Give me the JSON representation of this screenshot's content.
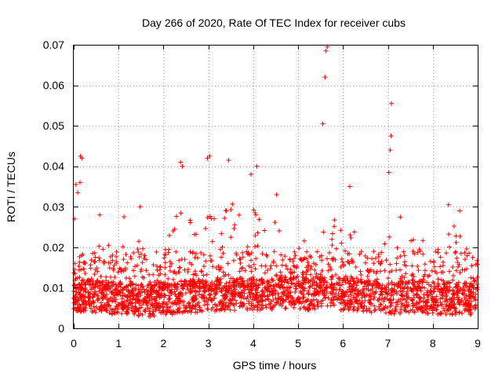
{
  "chart_data": {
    "type": "scatter",
    "title": "Day 266 of 2020, Rate Of TEC Index for receiver cubs",
    "xlabel": "GPS time / hours",
    "ylabel": "ROTI / TECUs",
    "xlim": [
      0,
      9
    ],
    "ylim": [
      0,
      0.07
    ],
    "x_ticks": [
      0,
      1,
      2,
      3,
      4,
      5,
      6,
      7,
      8,
      9
    ],
    "x_tick_labels": [
      "0",
      "1",
      "2",
      "3",
      "4",
      "5",
      "6",
      "7",
      "8",
      "9"
    ],
    "y_ticks": [
      0,
      0.01,
      0.02,
      0.03,
      0.04,
      0.05,
      0.06,
      0.07
    ],
    "y_tick_labels": [
      "0",
      "0.01",
      "0.02",
      "0.03",
      "0.04",
      "0.05",
      "0.06",
      "0.07"
    ],
    "grid": true,
    "marker": "+",
    "color": "#ff0000",
    "series": [
      {
        "name": "ROTI",
        "notable_points": [
          {
            "x": 0.02,
            "y": 0.027
          },
          {
            "x": 0.05,
            "y": 0.0355
          },
          {
            "x": 0.09,
            "y": 0.0335
          },
          {
            "x": 0.14,
            "y": 0.036
          },
          {
            "x": 0.15,
            "y": 0.0425
          },
          {
            "x": 0.18,
            "y": 0.042
          },
          {
            "x": 0.58,
            "y": 0.028
          },
          {
            "x": 1.12,
            "y": 0.0275
          },
          {
            "x": 1.48,
            "y": 0.03
          },
          {
            "x": 2.38,
            "y": 0.041
          },
          {
            "x": 2.42,
            "y": 0.04
          },
          {
            "x": 2.98,
            "y": 0.042
          },
          {
            "x": 3.03,
            "y": 0.0425
          },
          {
            "x": 3.45,
            "y": 0.0415
          },
          {
            "x": 3.95,
            "y": 0.038
          },
          {
            "x": 4.08,
            "y": 0.04
          },
          {
            "x": 4.52,
            "y": 0.033
          },
          {
            "x": 5.55,
            "y": 0.0505
          },
          {
            "x": 5.6,
            "y": 0.062
          },
          {
            "x": 5.62,
            "y": 0.0685
          },
          {
            "x": 5.65,
            "y": 0.0695
          },
          {
            "x": 6.15,
            "y": 0.035
          },
          {
            "x": 7.02,
            "y": 0.0385
          },
          {
            "x": 7.05,
            "y": 0.044
          },
          {
            "x": 7.07,
            "y": 0.0475
          },
          {
            "x": 7.08,
            "y": 0.0555
          },
          {
            "x": 8.35,
            "y": 0.0305
          },
          {
            "x": 8.6,
            "y": 0.029
          }
        ],
        "envelope": {
          "x": [
            0,
            0.25,
            0.5,
            0.75,
            1.0,
            1.25,
            1.5,
            1.75,
            2.0,
            2.25,
            2.5,
            2.75,
            3.0,
            3.25,
            3.5,
            3.75,
            4.0,
            4.25,
            4.5,
            4.75,
            5.0,
            5.25,
            5.5,
            5.75,
            6.0,
            6.25,
            6.5,
            6.75,
            7.0,
            7.25,
            7.5,
            7.75,
            8.0,
            8.25,
            8.5,
            8.75,
            9.0
          ],
          "baseline": [
            0.007,
            0.0075,
            0.0075,
            0.007,
            0.007,
            0.007,
            0.0065,
            0.0065,
            0.007,
            0.007,
            0.0075,
            0.0075,
            0.0075,
            0.008,
            0.008,
            0.008,
            0.008,
            0.008,
            0.008,
            0.0085,
            0.0085,
            0.008,
            0.0085,
            0.0085,
            0.008,
            0.008,
            0.0075,
            0.0075,
            0.007,
            0.007,
            0.0075,
            0.0075,
            0.007,
            0.007,
            0.007,
            0.007,
            0.0065
          ],
          "upper": [
            0.017,
            0.019,
            0.02,
            0.021,
            0.02,
            0.024,
            0.022,
            0.018,
            0.021,
            0.03,
            0.028,
            0.025,
            0.029,
            0.03,
            0.032,
            0.028,
            0.031,
            0.03,
            0.03,
            0.02,
            0.02,
            0.025,
            0.027,
            0.026,
            0.03,
            0.025,
            0.02,
            0.02,
            0.03,
            0.028,
            0.025,
            0.023,
            0.02,
            0.022,
            0.026,
            0.023,
            0.018
          ]
        }
      }
    ]
  }
}
